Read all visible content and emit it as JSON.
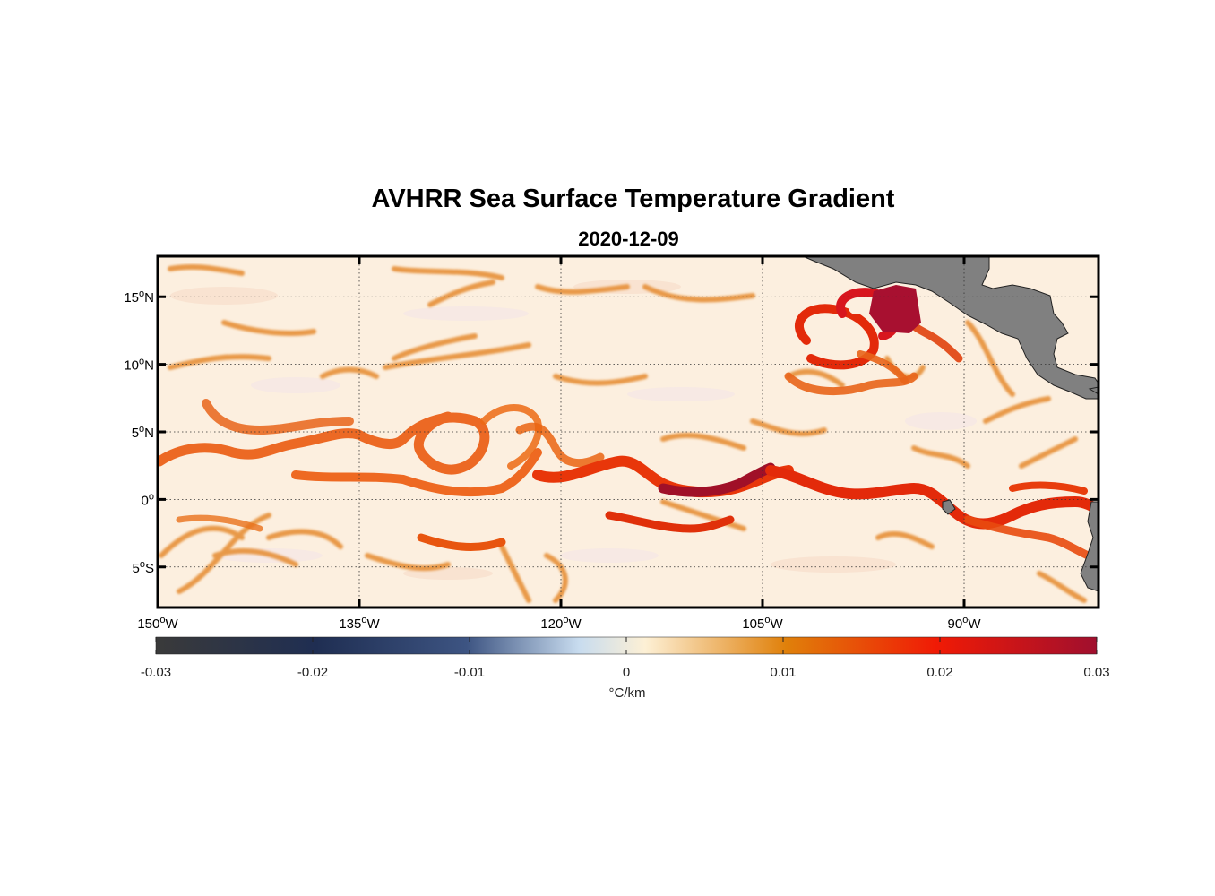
{
  "title": "AVHRR Sea Surface Temperature Gradient",
  "subtitle": "2020-12-09",
  "map": {
    "lon_range": [
      -150,
      -80
    ],
    "lat_range": [
      -8,
      18
    ],
    "grid": true,
    "land_color": "#808080",
    "lon_ticks": [
      {
        "value": -150,
        "deg": "150",
        "hemi": "W"
      },
      {
        "value": -135,
        "deg": "135",
        "hemi": "W"
      },
      {
        "value": -120,
        "deg": "120",
        "hemi": "W"
      },
      {
        "value": -105,
        "deg": "105",
        "hemi": "W"
      },
      {
        "value": -90,
        "deg": "90",
        "hemi": "W"
      }
    ],
    "lat_ticks": [
      {
        "value": 15,
        "deg": "15",
        "hemi": "N"
      },
      {
        "value": 10,
        "deg": "10",
        "hemi": "N"
      },
      {
        "value": 5,
        "deg": "5",
        "hemi": "N"
      },
      {
        "value": 0,
        "deg": "0",
        "hemi": ""
      },
      {
        "value": -5,
        "deg": "5",
        "hemi": "S"
      }
    ]
  },
  "colorbar": {
    "range": [
      -0.03,
      0.03
    ],
    "ticks": [
      {
        "value": -0.03,
        "label": "-0.03"
      },
      {
        "value": -0.02,
        "label": "-0.02"
      },
      {
        "value": -0.01,
        "label": "-0.01"
      },
      {
        "value": 0,
        "label": "0"
      },
      {
        "value": 0.01,
        "label": "0.01"
      },
      {
        "value": 0.02,
        "label": "0.02"
      },
      {
        "value": 0.03,
        "label": "0.03"
      }
    ],
    "unit_label": "°C/km",
    "colors": [
      "#3a3a3a",
      "#1f2e52",
      "#3d5482",
      "#c8dcef",
      "#fdf0d5",
      "#e0800a",
      "#f01a05",
      "#a00f2e"
    ]
  }
}
